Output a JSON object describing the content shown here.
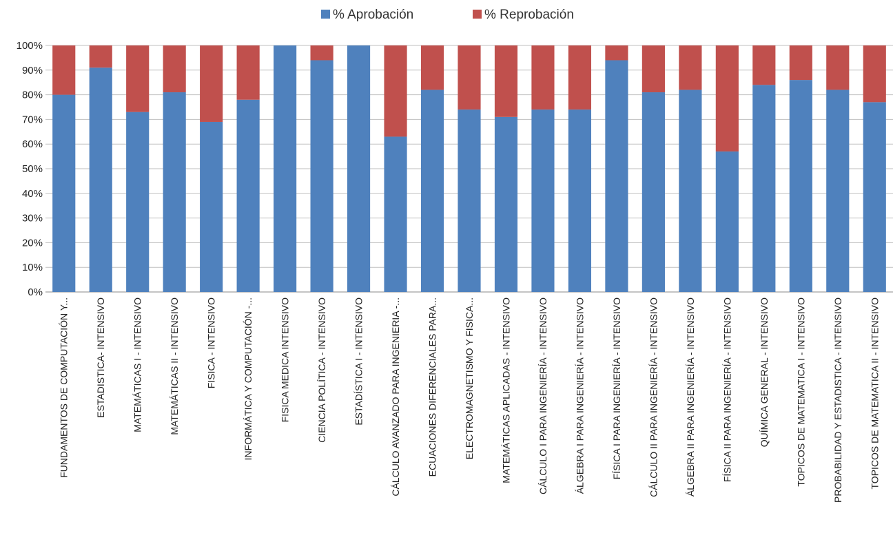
{
  "chart_data": {
    "type": "bar",
    "stacked": true,
    "categories": [
      "FUNDAMENTOS DE COMPUTACIÓN Y...",
      "ESTADISTICA- INTENSIVO",
      "MATEMÁTICAS I - INTENSIVO",
      "MATEMÁTICAS II - INTENSIVO",
      "FISICA - INTENSIVO",
      "INFORMÁTICA Y COMPUTACIÓN -...",
      "FISICA MEDICA INTENSIVO",
      "CIENCIA POLÍTICA - INTENSIVO",
      "ESTADÍSTICA I - INTENSIVO",
      "CÁLCULO AVANZADO PARA INGENIERIA -...",
      "ECUACIONES DIFERENCIALES PARA...",
      "ELECTROMAGNETISMO Y FISICA...",
      "MATEMÁTICAS APLICADAS - INTENSIVO",
      "CÁLCULO I PARA INGENIERÍA - INTENSIVO",
      "ÁLGEBRA I PARA INGENIERÍA - INTENSIVO",
      "FÍSICA I PARA INGENIERÍA - INTENSIVO",
      "CÁLCULO II PARA INGENIERÍA - INTENSIVO",
      "ÁLGEBRA II PARA INGENIERÍA - INTENSIVO",
      "FÍSICA II PARA INGENIERÍA - INTENSIVO",
      "QUÍMICA GENERAL - INTENSIVO",
      "TOPICOS DE MATEMATICA I - INTENSIVO",
      "PROBABILIDAD Y ESTADISTICA - INTENSIVO",
      "TOPICOS DE MATEMATICA II - INTENSIVO"
    ],
    "series": [
      {
        "name": "% Aprobación",
        "color": "#4f81bd",
        "values": [
          80,
          91,
          73,
          81,
          69,
          78,
          100,
          94,
          100,
          63,
          82,
          74,
          71,
          74,
          74,
          94,
          81,
          82,
          57,
          84,
          86,
          82,
          77
        ]
      },
      {
        "name": "% Reprobación",
        "color": "#c0504d",
        "values": [
          20,
          9,
          27,
          19,
          31,
          22,
          0,
          6,
          0,
          37,
          18,
          26,
          29,
          26,
          26,
          6,
          19,
          18,
          43,
          16,
          14,
          18,
          23
        ]
      }
    ],
    "ylim": [
      0,
      100
    ],
    "yticks": [
      "0%",
      "10%",
      "20%",
      "30%",
      "40%",
      "50%",
      "60%",
      "70%",
      "80%",
      "90%",
      "100%"
    ],
    "grid": true,
    "legend_position": "top"
  }
}
